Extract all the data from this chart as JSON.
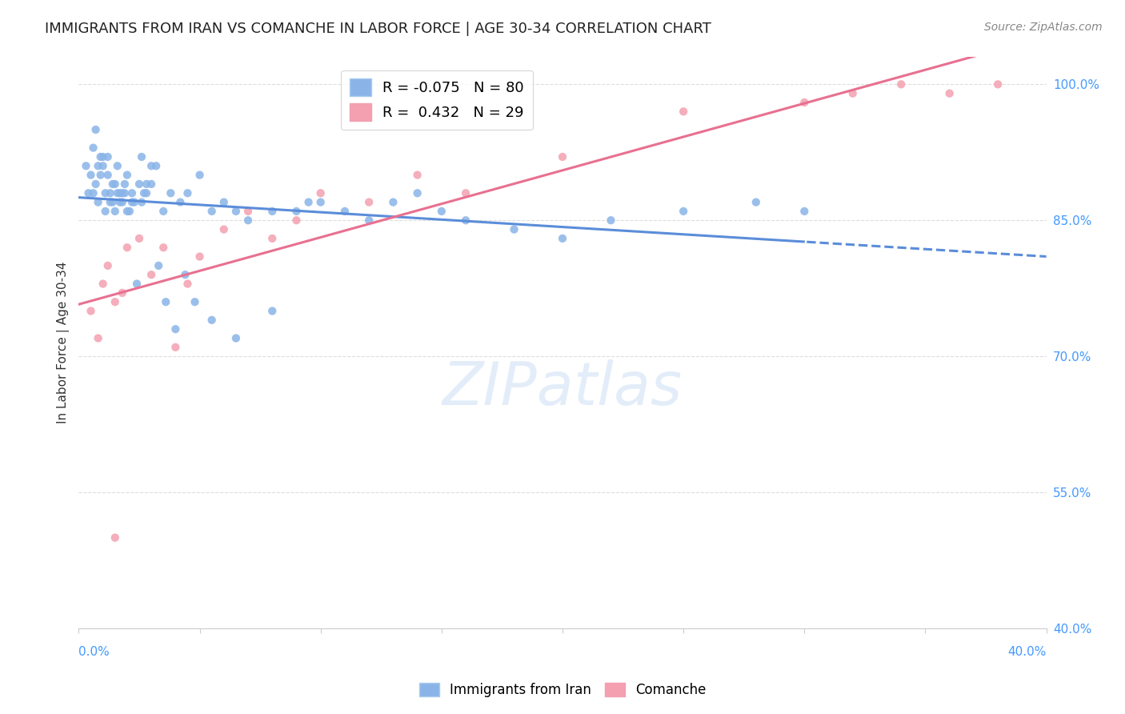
{
  "title": "IMMIGRANTS FROM IRAN VS COMANCHE IN LABOR FORCE | AGE 30-34 CORRELATION CHART",
  "source": "Source: ZipAtlas.com",
  "ylabel": "In Labor Force | Age 30-34",
  "y_tick_labels": [
    "100.0%",
    "85.0%",
    "70.0%",
    "55.0%",
    "40.0%"
  ],
  "y_tick_values": [
    1.0,
    0.85,
    0.7,
    0.55,
    0.4
  ],
  "x_min": 0.0,
  "x_max": 0.4,
  "y_min": 0.4,
  "y_max": 1.03,
  "iran_color": "#8ab4e8",
  "comanche_color": "#f4a0b0",
  "iran_line_color": "#5b8dd9",
  "comanche_line_color": "#e87090",
  "iran_R": -0.075,
  "iran_N": 80,
  "comanche_R": 0.432,
  "comanche_N": 29,
  "iran_points_x": [
    0.003,
    0.004,
    0.005,
    0.006,
    0.006,
    0.007,
    0.007,
    0.008,
    0.008,
    0.009,
    0.009,
    0.01,
    0.01,
    0.011,
    0.011,
    0.012,
    0.012,
    0.013,
    0.013,
    0.014,
    0.014,
    0.015,
    0.015,
    0.016,
    0.016,
    0.017,
    0.017,
    0.018,
    0.018,
    0.019,
    0.019,
    0.02,
    0.02,
    0.021,
    0.022,
    0.022,
    0.023,
    0.024,
    0.025,
    0.026,
    0.026,
    0.027,
    0.028,
    0.028,
    0.03,
    0.03,
    0.032,
    0.033,
    0.035,
    0.036,
    0.038,
    0.04,
    0.042,
    0.044,
    0.045,
    0.048,
    0.05,
    0.055,
    0.055,
    0.06,
    0.065,
    0.065,
    0.07,
    0.08,
    0.08,
    0.09,
    0.095,
    0.1,
    0.11,
    0.12,
    0.13,
    0.14,
    0.15,
    0.16,
    0.18,
    0.2,
    0.22,
    0.25,
    0.28,
    0.3
  ],
  "iran_points_y": [
    0.91,
    0.88,
    0.9,
    0.88,
    0.93,
    0.89,
    0.95,
    0.91,
    0.87,
    0.92,
    0.9,
    0.92,
    0.91,
    0.88,
    0.86,
    0.9,
    0.92,
    0.87,
    0.88,
    0.89,
    0.87,
    0.86,
    0.89,
    0.91,
    0.88,
    0.88,
    0.87,
    0.87,
    0.88,
    0.89,
    0.88,
    0.9,
    0.86,
    0.86,
    0.88,
    0.87,
    0.87,
    0.78,
    0.89,
    0.87,
    0.92,
    0.88,
    0.88,
    0.89,
    0.89,
    0.91,
    0.91,
    0.8,
    0.86,
    0.76,
    0.88,
    0.73,
    0.87,
    0.79,
    0.88,
    0.76,
    0.9,
    0.86,
    0.74,
    0.87,
    0.86,
    0.72,
    0.85,
    0.86,
    0.75,
    0.86,
    0.87,
    0.87,
    0.86,
    0.85,
    0.87,
    0.88,
    0.86,
    0.85,
    0.84,
    0.83,
    0.85,
    0.86,
    0.87,
    0.86
  ],
  "comanche_points_x": [
    0.005,
    0.008,
    0.01,
    0.012,
    0.015,
    0.015,
    0.018,
    0.02,
    0.025,
    0.03,
    0.035,
    0.04,
    0.045,
    0.05,
    0.06,
    0.07,
    0.08,
    0.09,
    0.1,
    0.12,
    0.14,
    0.16,
    0.2,
    0.25,
    0.3,
    0.32,
    0.34,
    0.36,
    0.38
  ],
  "comanche_points_y": [
    0.75,
    0.72,
    0.78,
    0.8,
    0.76,
    0.5,
    0.77,
    0.82,
    0.83,
    0.79,
    0.82,
    0.71,
    0.78,
    0.81,
    0.84,
    0.86,
    0.83,
    0.85,
    0.88,
    0.87,
    0.9,
    0.88,
    0.92,
    0.97,
    0.98,
    0.99,
    1.0,
    0.99,
    1.0
  ],
  "background_color": "#ffffff",
  "grid_color": "#dddddd",
  "tick_label_color": "#4499ff"
}
